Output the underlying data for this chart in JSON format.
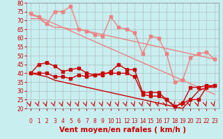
{
  "bg_color": "#c8eef0",
  "grid_color": "#aaaaaa",
  "xlabel": "Vent moyen/en rafales ( km/h )",
  "xlabel_color": "#cc0000",
  "xlabel_fontsize": 7.5,
  "ylim": [
    20,
    80
  ],
  "xlim": [
    0,
    23
  ],
  "yticks": [
    20,
    25,
    30,
    35,
    40,
    45,
    50,
    55,
    60,
    65,
    70,
    75,
    80
  ],
  "xticks": [
    0,
    1,
    2,
    3,
    4,
    5,
    6,
    7,
    8,
    9,
    10,
    11,
    12,
    13,
    14,
    15,
    16,
    17,
    18,
    19,
    20,
    21,
    22,
    23
  ],
  "line_light_1": [
    74,
    72,
    68,
    75,
    75,
    78,
    65,
    64,
    62,
    61,
    72,
    66,
    65,
    63,
    51,
    61,
    60,
    51,
    35,
    36,
    49,
    51,
    52,
    48
  ],
  "line_light_2": [
    71,
    71,
    68,
    66,
    66,
    65,
    65,
    64,
    63,
    62,
    61,
    60,
    59,
    58,
    57,
    56,
    55,
    54,
    53,
    52,
    51,
    50,
    49,
    48
  ],
  "line_light_3": [
    73,
    72,
    70,
    68,
    66,
    64,
    62,
    60,
    58,
    56,
    54,
    52,
    50,
    48,
    46,
    44,
    42,
    40,
    38,
    36,
    34,
    32,
    30,
    28
  ],
  "line_dark_1": [
    40,
    45,
    46,
    44,
    41,
    42,
    43,
    40,
    39,
    39,
    41,
    45,
    42,
    42,
    29,
    29,
    29,
    25,
    21,
    23,
    32,
    32,
    33,
    33
  ],
  "line_dark_2": [
    40,
    40,
    40,
    38,
    38,
    37,
    39,
    38,
    39,
    40,
    40,
    40,
    40,
    38,
    28,
    27,
    27,
    25,
    21,
    23,
    25,
    25,
    32,
    33
  ],
  "line_dark_3": [
    40,
    39,
    38,
    36,
    35,
    34,
    33,
    32,
    31,
    30,
    29,
    28,
    27,
    26,
    25,
    24,
    23,
    22,
    21,
    20,
    25,
    30,
    32,
    32
  ],
  "color_light": "#f08080",
  "color_dark": "#cc0000",
  "marker_size": 2.5,
  "linewidth_light": 1.0,
  "linewidth_dark": 1.0,
  "tick_fontsize": 5.5,
  "tick_color": "#cc0000"
}
